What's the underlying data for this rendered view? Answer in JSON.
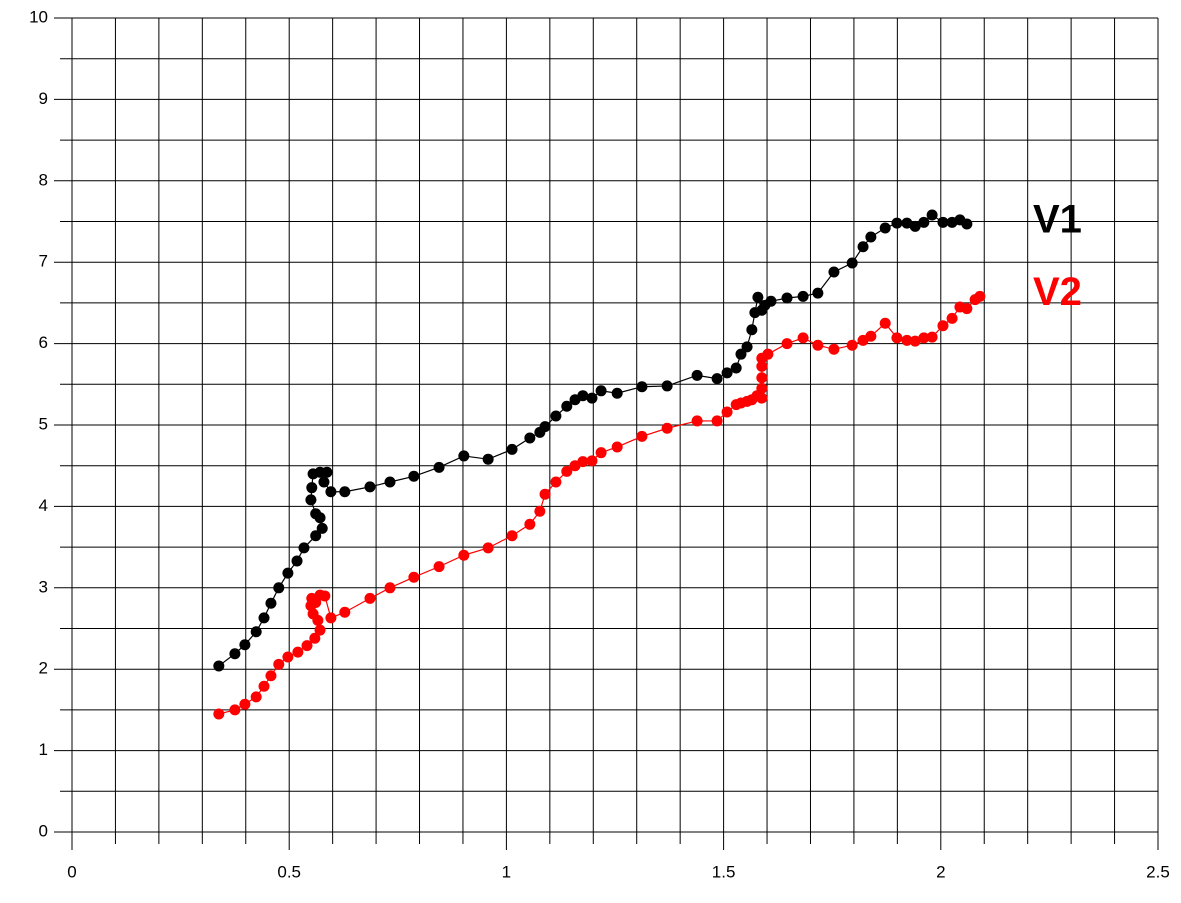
{
  "chart_data": {
    "type": "line",
    "xlim": [
      0,
      2.5
    ],
    "ylim": [
      0,
      10
    ],
    "xticks": [
      0,
      0.5,
      1,
      1.5,
      2,
      2.5
    ],
    "yticks": [
      0,
      1,
      2,
      3,
      4,
      5,
      6,
      7,
      8,
      9,
      10
    ],
    "xgrid": [
      0.1,
      0.2,
      0.3,
      0.4,
      0.6,
      0.7,
      0.8,
      0.9,
      1.1,
      1.2,
      1.3,
      1.4,
      1.6,
      1.7,
      1.8,
      1.9,
      2.1,
      2.2,
      2.3,
      2.4
    ],
    "ygrid": [
      0.5,
      1.5,
      2.5,
      3.5,
      4.5,
      5.5,
      6.5,
      7.5,
      8.5,
      9.5
    ],
    "grid": true,
    "legend": "right",
    "series": [
      {
        "name": "V1",
        "color": "#000000",
        "x": [
          0.338,
          0.375,
          0.398,
          0.424,
          0.442,
          0.458,
          0.476,
          0.497,
          0.518,
          0.534,
          0.561,
          0.576,
          0.571,
          0.561,
          0.55,
          0.552,
          0.555,
          0.571,
          0.587,
          0.58,
          0.596,
          0.628,
          0.686,
          0.732,
          0.787,
          0.845,
          0.902,
          0.958,
          1.013,
          1.054,
          1.077,
          1.089,
          1.114,
          1.139,
          1.158,
          1.176,
          1.197,
          1.218,
          1.255,
          1.312,
          1.37,
          1.439,
          1.485,
          1.508,
          1.529,
          1.54,
          1.554,
          1.565,
          1.572,
          1.579,
          1.588,
          1.595,
          1.609,
          1.646,
          1.683,
          1.717,
          1.754,
          1.796,
          1.821,
          1.839,
          1.872,
          1.899,
          1.922,
          1.941,
          1.961,
          1.98,
          2.005,
          2.026,
          2.044,
          2.06
        ],
        "values": [
          2.04,
          2.19,
          2.3,
          2.46,
          2.63,
          2.81,
          3.0,
          3.18,
          3.33,
          3.49,
          3.64,
          3.73,
          3.86,
          3.91,
          4.08,
          4.23,
          4.4,
          4.42,
          4.42,
          4.3,
          4.18,
          4.18,
          4.24,
          4.3,
          4.37,
          4.48,
          4.62,
          4.58,
          4.7,
          4.84,
          4.91,
          4.98,
          5.11,
          5.23,
          5.31,
          5.36,
          5.33,
          5.42,
          5.39,
          5.47,
          5.48,
          5.61,
          5.57,
          5.64,
          5.7,
          5.87,
          5.96,
          6.17,
          6.38,
          6.57,
          6.41,
          6.47,
          6.52,
          6.56,
          6.58,
          6.62,
          6.88,
          6.99,
          7.19,
          7.31,
          7.42,
          7.48,
          7.48,
          7.44,
          7.49,
          7.58,
          7.49,
          7.49,
          7.52,
          7.47
        ]
      },
      {
        "name": "V2",
        "color": "#ff0000",
        "x": [
          0.338,
          0.375,
          0.398,
          0.424,
          0.442,
          0.458,
          0.476,
          0.497,
          0.52,
          0.541,
          0.559,
          0.571,
          0.566,
          0.555,
          0.55,
          0.552,
          0.561,
          0.571,
          0.582,
          0.596,
          0.628,
          0.686,
          0.732,
          0.787,
          0.845,
          0.902,
          0.958,
          1.013,
          1.054,
          1.077,
          1.089,
          1.114,
          1.139,
          1.158,
          1.176,
          1.197,
          1.218,
          1.255,
          1.312,
          1.37,
          1.439,
          1.485,
          1.508,
          1.529,
          1.54,
          1.554,
          1.565,
          1.577,
          1.588,
          1.588,
          1.588,
          1.588,
          1.588,
          1.602,
          1.646,
          1.683,
          1.717,
          1.754,
          1.796,
          1.821,
          1.839,
          1.872,
          1.899,
          1.922,
          1.941,
          1.961,
          1.98,
          2.005,
          2.026,
          2.044,
          2.06,
          2.079,
          2.09
        ],
        "values": [
          1.45,
          1.5,
          1.57,
          1.66,
          1.79,
          1.92,
          2.06,
          2.15,
          2.21,
          2.29,
          2.38,
          2.48,
          2.6,
          2.68,
          2.78,
          2.87,
          2.82,
          2.91,
          2.9,
          2.63,
          2.7,
          2.87,
          3.0,
          3.13,
          3.26,
          3.4,
          3.49,
          3.64,
          3.78,
          3.94,
          4.15,
          4.3,
          4.43,
          4.5,
          4.55,
          4.56,
          4.66,
          4.73,
          4.86,
          4.96,
          5.05,
          5.05,
          5.16,
          5.25,
          5.27,
          5.29,
          5.31,
          5.36,
          5.33,
          5.45,
          5.58,
          5.72,
          5.82,
          5.87,
          6.0,
          6.07,
          5.98,
          5.93,
          5.98,
          6.04,
          6.09,
          6.25,
          6.07,
          6.04,
          6.03,
          6.07,
          6.08,
          6.22,
          6.31,
          6.45,
          6.43,
          6.54,
          6.58
        ]
      }
    ]
  }
}
